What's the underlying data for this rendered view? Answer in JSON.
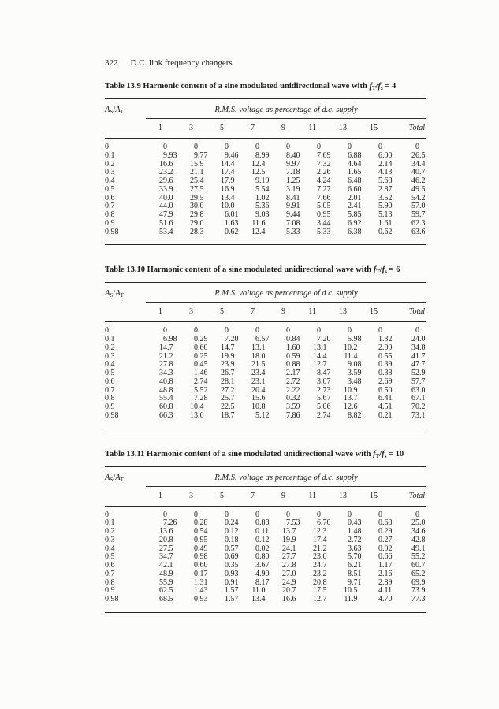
{
  "page": {
    "page_number": "322",
    "running_title": "D.C. link frequency changers"
  },
  "colors": {
    "paper": "#fcfcfa",
    "ink": "#1b1b1b"
  },
  "table_common": {
    "stub_header": {
      "num_var": "A",
      "num_sub": "S",
      "den_var": "A",
      "den_sub": "T"
    },
    "ratio_expr": {
      "num_var": "f",
      "num_sub": "T",
      "den_var": "f",
      "den_sub": "s"
    },
    "span_header": "R.M.S. voltage as percentage of d.c. supply",
    "harmonic_headers": [
      "1",
      "3",
      "5",
      "7",
      "9",
      "11",
      "13",
      "15"
    ],
    "total_header": "Total"
  },
  "tables": [
    {
      "id": "13.9",
      "title_prefix": "Table 13.9 Harmonic content of a sine modulated unidirectional wave with",
      "ratio_value": "4",
      "rows": [
        {
          "as_at": "0",
          "values": [
            "0",
            "0",
            "0",
            "0",
            "0",
            "0",
            "0",
            "0",
            "0"
          ]
        },
        {
          "as_at": "0.1",
          "values": [
            "9.93",
            "9.77",
            "9.46",
            "8.99",
            "8.40",
            "7.69",
            "6.88",
            "6.00",
            "26.5"
          ]
        },
        {
          "as_at": "0.2",
          "values": [
            "16.6",
            "15.9",
            "14.4",
            "12.4",
            "9.97",
            "7.32",
            "4.64",
            "2.14",
            "34.4"
          ]
        },
        {
          "as_at": "0.3",
          "values": [
            "23.2",
            "21.1",
            "17.4",
            "12.5",
            "7.18",
            "2.26",
            "1.65",
            "4.13",
            "40.7"
          ]
        },
        {
          "as_at": "0.4",
          "values": [
            "29.6",
            "25.4",
            "17.9",
            "9.19",
            "1.25",
            "4.24",
            "6.48",
            "5.68",
            "46.2"
          ]
        },
        {
          "as_at": "0.5",
          "values": [
            "33.9",
            "27.5",
            "16.9",
            "5.54",
            "3.19",
            "7.27",
            "6.60",
            "2.87",
            "49.5"
          ]
        },
        {
          "as_at": "0.6",
          "values": [
            "40.0",
            "29.5",
            "13.4",
            "1.02",
            "8.41",
            "7.66",
            "2.01",
            "3.52",
            "54.2"
          ]
        },
        {
          "as_at": "0.7",
          "values": [
            "44.0",
            "30.0",
            "10.0",
            "5.36",
            "9.91",
            "5.05",
            "2.41",
            "5.90",
            "57.0"
          ]
        },
        {
          "as_at": "0.8",
          "values": [
            "47.9",
            "29.8",
            "6.01",
            "9.03",
            "9.44",
            "0.95",
            "5.85",
            "5.13",
            "59.7"
          ]
        },
        {
          "as_at": "0.9",
          "values": [
            "51.6",
            "29.0",
            "1.63",
            "11.6",
            "7.08",
            "3.44",
            "6.92",
            "1.61",
            "62.3"
          ]
        },
        {
          "as_at": "0.98",
          "values": [
            "53.4",
            "28.3",
            "0.62",
            "12.4",
            "5.33",
            "5.33",
            "6.38",
            "0.62",
            "63.6"
          ]
        }
      ]
    },
    {
      "id": "13.10",
      "title_prefix": "Table 13.10 Harmonic content of a sine modulated unidirectional wave with",
      "ratio_value": "6",
      "rows": [
        {
          "as_at": "0",
          "values": [
            "0",
            "0",
            "0",
            "0",
            "0",
            "0",
            "0",
            "0",
            "0"
          ]
        },
        {
          "as_at": "0.1",
          "values": [
            "6.98",
            "0.29",
            "7.20",
            "6.57",
            "0.84",
            "7.20",
            "5.98",
            "1.32",
            "24.0"
          ]
        },
        {
          "as_at": "0.2",
          "values": [
            "14.7",
            "0.60",
            "14.7",
            "13.1",
            "1.60",
            "13.1",
            "10.2",
            "2.09",
            "34.8"
          ]
        },
        {
          "as_at": "0.3",
          "values": [
            "21.2",
            "0.25",
            "19.9",
            "18.0",
            "0.59",
            "14.4",
            "11.4",
            "0.55",
            "41.7"
          ]
        },
        {
          "as_at": "0.4",
          "values": [
            "27.8",
            "0.45",
            "23.9",
            "21.5",
            "0.88",
            "12.7",
            "9.08",
            "0.39",
            "47.7"
          ]
        },
        {
          "as_at": "0.5",
          "values": [
            "34.3",
            "1.46",
            "26.7",
            "23.4",
            "2.17",
            "8.47",
            "3.59",
            "0.38",
            "52.9"
          ]
        },
        {
          "as_at": "0.6",
          "values": [
            "40.8",
            "2.74",
            "28.1",
            "23.1",
            "2.72",
            "3.07",
            "3.48",
            "2.69",
            "57.7"
          ]
        },
        {
          "as_at": "0.7",
          "values": [
            "48.8",
            "5.52",
            "27.2",
            "20.4",
            "2.22",
            "2.73",
            "10.9",
            "6.50",
            "63.0"
          ]
        },
        {
          "as_at": "0.8",
          "values": [
            "55.4",
            "7.28",
            "25.7",
            "15.6",
            "0.32",
            "5.67",
            "13.7",
            "6.41",
            "67.1"
          ]
        },
        {
          "as_at": "0.9",
          "values": [
            "60.8",
            "10.4",
            "22.5",
            "10.8",
            "3.59",
            "5.06",
            "12.6",
            "4.51",
            "70.2"
          ]
        },
        {
          "as_at": "0.98",
          "values": [
            "66.3",
            "13.6",
            "18.7",
            "5.12",
            "7.86",
            "2.74",
            "8.82",
            "0.21",
            "73.1"
          ]
        }
      ]
    },
    {
      "id": "13.11",
      "title_prefix": "Table 13.11 Harmonic content of a sine modulated unidirectional wave with",
      "ratio_value": "10",
      "rows": [
        {
          "as_at": "0",
          "values": [
            "0",
            "0",
            "0",
            "0",
            "0",
            "0",
            "0",
            "0",
            "0"
          ]
        },
        {
          "as_at": "0.1",
          "values": [
            "7.26",
            "0.28",
            "0.24",
            "0.88",
            "7.53",
            "6.70",
            "0.43",
            "0.68",
            "25.0"
          ]
        },
        {
          "as_at": "0.2",
          "values": [
            "13.6",
            "0.54",
            "0.12",
            "0.11",
            "13.7",
            "12.3",
            "1.48",
            "0.29",
            "34.6"
          ]
        },
        {
          "as_at": "0.3",
          "values": [
            "20.8",
            "0.95",
            "0.18",
            "0.12",
            "19.9",
            "17.4",
            "2.72",
            "0.27",
            "42.8"
          ]
        },
        {
          "as_at": "0.4",
          "values": [
            "27.5",
            "0.49",
            "0.57",
            "0.02",
            "24.1",
            "21.2",
            "3.63",
            "0.92",
            "49.1"
          ]
        },
        {
          "as_at": "0.5",
          "values": [
            "34.7",
            "0.98",
            "0.69",
            "0.80",
            "27.7",
            "23.0",
            "5.70",
            "0.66",
            "55.2"
          ]
        },
        {
          "as_at": "0.6",
          "values": [
            "42.1",
            "0.60",
            "0.35",
            "3.67",
            "27.8",
            "24.7",
            "6.21",
            "1.17",
            "60.7"
          ]
        },
        {
          "as_at": "0.7",
          "values": [
            "48.9",
            "0.17",
            "0.93",
            "4.90",
            "27.0",
            "23.2",
            "8.51",
            "2.16",
            "65.2"
          ]
        },
        {
          "as_at": "0.8",
          "values": [
            "55.9",
            "1.31",
            "0.91",
            "8.17",
            "24.9",
            "20.8",
            "9.71",
            "2.89",
            "69.9"
          ]
        },
        {
          "as_at": "0.9",
          "values": [
            "62.5",
            "1.43",
            "1.57",
            "11.0",
            "20.7",
            "17.5",
            "10.5",
            "4.11",
            "73.9"
          ]
        },
        {
          "as_at": "0.98",
          "values": [
            "68.5",
            "0.93",
            "1.57",
            "13.4",
            "16.6",
            "12.7",
            "11.9",
            "4.70",
            "77.3"
          ]
        }
      ]
    }
  ]
}
